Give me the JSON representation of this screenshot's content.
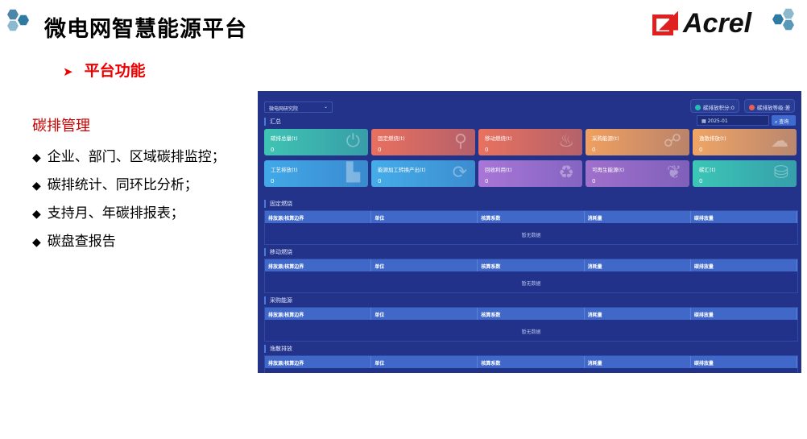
{
  "slide": {
    "title": "微电网智慧能源平台",
    "subtitle": "平台功能",
    "logo_text": "Acrel",
    "feature_heading": "碳排管理",
    "features": [
      "企业、部门、区域碳排监控；",
      "碳排统计、同环比分析；",
      "支持月、年碳排报表；",
      "碳盘查报告"
    ]
  },
  "app": {
    "site_select": "微电网研究院",
    "summary_title": "汇总",
    "score_label": "碳排放积分:0",
    "level_label": "碳排放等级:差",
    "date_value": "2025-01",
    "query_label": "查询",
    "cards": [
      {
        "label": "碳排总量(t)",
        "value": "0",
        "icon": "power-icon",
        "color": "#3fc4b3"
      },
      {
        "label": "固定燃烧(t)",
        "value": "0",
        "icon": "location-flame-icon",
        "color": "#e9705f"
      },
      {
        "label": "移动燃烧(t)",
        "value": "0",
        "icon": "fire-icon",
        "color": "#e9725f"
      },
      {
        "label": "采购能源(t)",
        "value": "0",
        "icon": "network-icon",
        "color": "#f0a060"
      },
      {
        "label": "逸散排放(t)",
        "value": "0",
        "icon": "cloud-icon",
        "color": "#f0a565"
      },
      {
        "label": "工艺排放(t)",
        "value": "0",
        "icon": "factory-icon",
        "color": "#42a9e8"
      },
      {
        "label": "能源加工转换产出(t)",
        "value": "0",
        "icon": "exchange-icon",
        "color": "#45ade9"
      },
      {
        "label": "回收利用(t)",
        "value": "0",
        "icon": "recycle-icon",
        "color": "#a876d6"
      },
      {
        "label": "可再生能源(t)",
        "value": "0",
        "icon": "plant-hand-icon",
        "color": "#a070cc"
      },
      {
        "label": "碳汇(t)",
        "value": "0",
        "icon": "carbon-storage-icon",
        "color": "#3cc6b6"
      }
    ],
    "columns": [
      "排放源/核算边界",
      "单位",
      "核算系数",
      "消耗量",
      "碳排放量"
    ],
    "empty_text": "暂无数据",
    "sections": [
      "固定燃烧",
      "移动燃烧",
      "采购能源",
      "逸散排放"
    ]
  }
}
